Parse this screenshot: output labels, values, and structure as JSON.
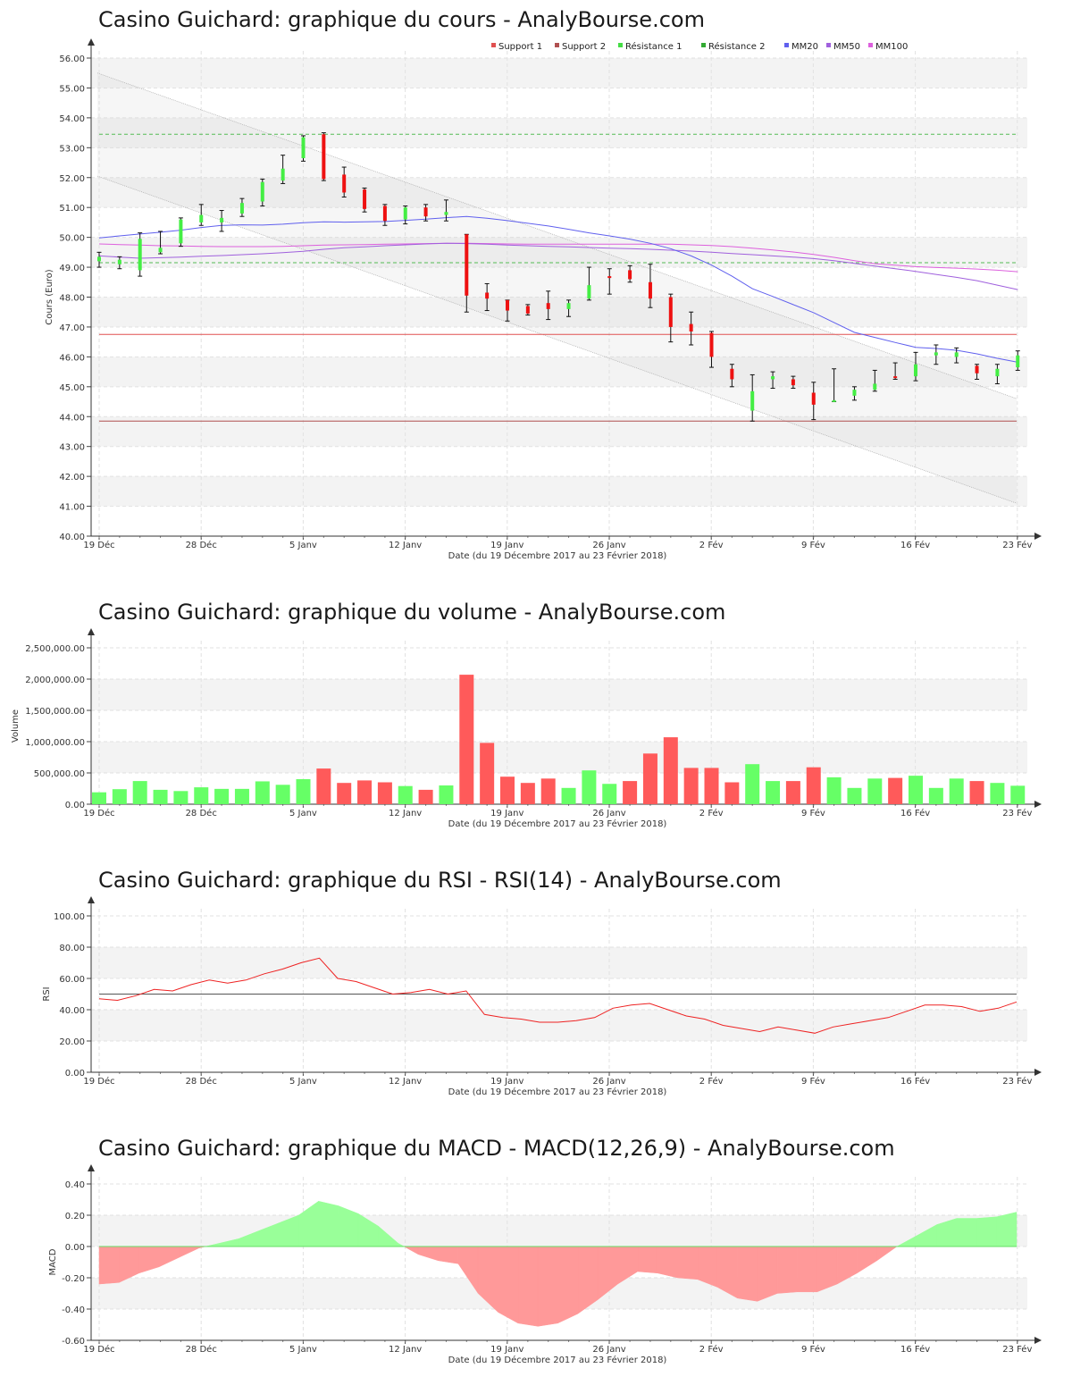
{
  "chart_data": [
    {
      "type": "candlestick",
      "title": "Casino Guichard: graphique du cours - AnalyBourse.com",
      "ylabel": "Cours (Euro)",
      "xlabel": "Date (du 19 Décembre 2017 au 23 Février 2018)",
      "ylim": [
        40,
        56
      ],
      "y_ticks": [
        "40.00",
        "41.00",
        "42.00",
        "43.00",
        "44.00",
        "45.00",
        "46.00",
        "47.00",
        "48.00",
        "49.00",
        "50.00",
        "51.00",
        "52.00",
        "53.00",
        "54.00",
        "55.00",
        "56.00"
      ],
      "x_ticks": [
        "19 Déc",
        "28 Déc",
        "5 Janv",
        "12 Janv",
        "19 Janv",
        "26 Janv",
        "2 Fév",
        "9 Fév",
        "16 Fév",
        "23 Fév"
      ],
      "legend": [
        {
          "name": "Support 1",
          "color": "#e05050"
        },
        {
          "name": "Support 2",
          "color": "#b05050"
        },
        {
          "name": "Résistance 1",
          "color": "#44dd44"
        },
        {
          "name": "Résistance 2",
          "color": "#33aa33"
        },
        {
          "name": "MM20",
          "color": "#6060ee"
        },
        {
          "name": "MM50",
          "color": "#a060dd"
        },
        {
          "name": "MM100",
          "color": "#dd60dd"
        }
      ],
      "legend_position": "top-right",
      "levels": {
        "support1": 46.75,
        "support2": 43.85,
        "resistance1": 49.15,
        "resistance2": 53.45
      },
      "candles": [
        {
          "o": 49.2,
          "c": 49.35,
          "h": 49.5,
          "l": 49.0
        },
        {
          "o": 49.1,
          "c": 49.25,
          "h": 49.35,
          "l": 48.95
        },
        {
          "o": 48.9,
          "c": 49.95,
          "h": 50.15,
          "l": 48.7
        },
        {
          "o": 49.5,
          "c": 49.65,
          "h": 50.2,
          "l": 49.45
        },
        {
          "o": 49.8,
          "c": 50.6,
          "h": 50.65,
          "l": 49.7
        },
        {
          "o": 50.5,
          "c": 50.75,
          "h": 51.1,
          "l": 50.4
        },
        {
          "o": 50.5,
          "c": 50.65,
          "h": 50.9,
          "l": 50.2
        },
        {
          "o": 50.8,
          "c": 51.15,
          "h": 51.3,
          "l": 50.7
        },
        {
          "o": 51.2,
          "c": 51.85,
          "h": 51.95,
          "l": 51.05
        },
        {
          "o": 51.9,
          "c": 52.3,
          "h": 52.75,
          "l": 51.8
        },
        {
          "o": 52.65,
          "c": 53.35,
          "h": 53.4,
          "l": 52.55
        },
        {
          "o": 53.45,
          "c": 51.95,
          "h": 53.5,
          "l": 51.9
        },
        {
          "o": 52.1,
          "c": 51.5,
          "h": 52.35,
          "l": 51.35
        },
        {
          "o": 51.6,
          "c": 50.95,
          "h": 51.65,
          "l": 50.85
        },
        {
          "o": 51.05,
          "c": 50.55,
          "h": 51.1,
          "l": 50.4
        },
        {
          "o": 50.6,
          "c": 51.0,
          "h": 51.05,
          "l": 50.45
        },
        {
          "o": 51.0,
          "c": 50.7,
          "h": 51.1,
          "l": 50.55
        },
        {
          "o": 50.75,
          "c": 50.85,
          "h": 51.25,
          "l": 50.55
        },
        {
          "o": 50.1,
          "c": 48.05,
          "h": 50.1,
          "l": 47.5
        },
        {
          "o": 48.15,
          "c": 47.95,
          "h": 48.45,
          "l": 47.55
        },
        {
          "o": 47.9,
          "c": 47.55,
          "h": 47.9,
          "l": 47.2
        },
        {
          "o": 47.7,
          "c": 47.45,
          "h": 47.75,
          "l": 47.4
        },
        {
          "o": 47.8,
          "c": 47.6,
          "h": 48.2,
          "l": 47.25
        },
        {
          "o": 47.6,
          "c": 47.8,
          "h": 47.9,
          "l": 47.35
        },
        {
          "o": 47.95,
          "c": 48.4,
          "h": 49.0,
          "l": 47.9
        },
        {
          "o": 48.7,
          "c": 48.65,
          "h": 48.95,
          "l": 48.1
        },
        {
          "o": 48.9,
          "c": 48.6,
          "h": 49.05,
          "l": 48.5
        },
        {
          "o": 48.5,
          "c": 47.95,
          "h": 49.1,
          "l": 47.65
        },
        {
          "o": 48.0,
          "c": 47.0,
          "h": 48.1,
          "l": 46.5
        },
        {
          "o": 47.1,
          "c": 46.85,
          "h": 47.5,
          "l": 46.4
        },
        {
          "o": 46.8,
          "c": 46.0,
          "h": 46.85,
          "l": 45.65
        },
        {
          "o": 45.6,
          "c": 45.25,
          "h": 45.75,
          "l": 45.0
        },
        {
          "o": 44.2,
          "c": 44.85,
          "h": 45.4,
          "l": 43.85
        },
        {
          "o": 45.25,
          "c": 45.35,
          "h": 45.5,
          "l": 44.95
        },
        {
          "o": 45.25,
          "c": 45.05,
          "h": 45.35,
          "l": 44.95
        },
        {
          "o": 44.8,
          "c": 44.4,
          "h": 45.15,
          "l": 43.9
        },
        {
          "o": 44.5,
          "c": 44.55,
          "h": 45.6,
          "l": 44.5
        },
        {
          "o": 44.7,
          "c": 44.9,
          "h": 45.0,
          "l": 44.55
        },
        {
          "o": 44.9,
          "c": 45.1,
          "h": 45.55,
          "l": 44.85
        },
        {
          "o": 45.35,
          "c": 45.3,
          "h": 45.8,
          "l": 45.25
        },
        {
          "o": 45.35,
          "c": 45.75,
          "h": 46.15,
          "l": 45.2
        },
        {
          "o": 46.05,
          "c": 46.15,
          "h": 46.4,
          "l": 45.75
        },
        {
          "o": 46.0,
          "c": 46.15,
          "h": 46.3,
          "l": 45.8
        },
        {
          "o": 45.7,
          "c": 45.45,
          "h": 45.75,
          "l": 45.25
        },
        {
          "o": 45.35,
          "c": 45.6,
          "h": 45.75,
          "l": 45.1
        },
        {
          "o": 45.65,
          "c": 46.05,
          "h": 46.2,
          "l": 45.55
        }
      ],
      "mm20": [
        49.98,
        50.05,
        50.11,
        50.17,
        50.24,
        50.33,
        50.4,
        50.42,
        50.41,
        50.44,
        50.49,
        50.52,
        50.51,
        50.52,
        50.53,
        50.57,
        50.61,
        50.66,
        50.7,
        50.64,
        50.56,
        50.47,
        50.38,
        50.27,
        50.15,
        50.05,
        49.94,
        49.8,
        49.62,
        49.38,
        49.07,
        48.7,
        48.28,
        48.02,
        47.75,
        47.48,
        47.15,
        46.82,
        46.65,
        46.48,
        46.32,
        46.28,
        46.22,
        46.1,
        45.95,
        45.82
      ],
      "mm50": [
        49.38,
        49.34,
        49.3,
        49.32,
        49.34,
        49.37,
        49.39,
        49.42,
        49.45,
        49.49,
        49.53,
        49.6,
        49.65,
        49.68,
        49.72,
        49.75,
        49.78,
        49.8,
        49.79,
        49.77,
        49.74,
        49.72,
        49.7,
        49.68,
        49.66,
        49.64,
        49.62,
        49.6,
        49.57,
        49.54,
        49.5,
        49.46,
        49.42,
        49.38,
        49.34,
        49.29,
        49.22,
        49.13,
        49.04,
        48.95,
        48.86,
        48.76,
        48.66,
        48.55,
        48.4,
        48.25
      ],
      "mm100": [
        49.78,
        49.76,
        49.74,
        49.72,
        49.71,
        49.7,
        49.69,
        49.69,
        49.69,
        49.7,
        49.72,
        49.74,
        49.75,
        49.76,
        49.77,
        49.78,
        49.79,
        49.8,
        49.8,
        49.79,
        49.78,
        49.77,
        49.77,
        49.77,
        49.77,
        49.77,
        49.77,
        49.77,
        49.77,
        49.75,
        49.73,
        49.69,
        49.64,
        49.58,
        49.51,
        49.43,
        49.33,
        49.22,
        49.12,
        49.07,
        49.02,
        48.99,
        48.97,
        48.94,
        48.9,
        48.85
      ],
      "channel": {
        "upper": [
          55.5,
          44.6
        ],
        "lower": [
          52.05,
          41.1
        ]
      }
    },
    {
      "type": "bar",
      "title": "Casino Guichard: graphique du volume - AnalyBourse.com",
      "ylabel": "Volume",
      "xlabel": "Date (du 19 Décembre 2017 au 23 Février 2018)",
      "ylim": [
        0,
        2500000
      ],
      "y_ticks": [
        "0.00",
        "500,000.00",
        "1,000,000.00",
        "1,500,000.00",
        "2,000,000.00",
        "2,500,000.00"
      ],
      "x_ticks": [
        "19 Déc",
        "28 Déc",
        "5 Janv",
        "12 Janv",
        "19 Janv",
        "26 Janv",
        "2 Fév",
        "9 Fév",
        "16 Fév",
        "23 Fév"
      ],
      "values": [
        190000,
        240000,
        370000,
        230000,
        210000,
        270000,
        245000,
        245000,
        365000,
        310000,
        400000,
        570000,
        340000,
        380000,
        350000,
        290000,
        230000,
        300000,
        2070000,
        980000,
        440000,
        340000,
        410000,
        260000,
        540000,
        325000,
        370000,
        810000,
        1070000,
        580000,
        580000,
        350000,
        640000,
        370000,
        370000,
        590000,
        430000,
        260000,
        410000,
        420000,
        455000,
        260000,
        410000,
        370000,
        340000,
        295000
      ],
      "up": [
        true,
        true,
        true,
        true,
        true,
        true,
        true,
        true,
        true,
        true,
        true,
        false,
        false,
        false,
        false,
        true,
        false,
        true,
        false,
        false,
        false,
        false,
        false,
        true,
        true,
        true,
        false,
        false,
        false,
        false,
        false,
        false,
        true,
        true,
        false,
        false,
        true,
        true,
        true,
        false,
        true,
        true,
        true,
        false,
        true,
        true
      ]
    },
    {
      "type": "line",
      "title": "Casino Guichard: graphique du RSI - RSI(14) - AnalyBourse.com",
      "ylabel": "RSI",
      "xlabel": "Date (du 19 Décembre 2017 au 23 Février 2018)",
      "ylim": [
        0,
        100
      ],
      "y_ticks": [
        "0.00",
        "20.00",
        "40.00",
        "60.00",
        "80.00",
        "100.00"
      ],
      "x_ticks": [
        "19 Déc",
        "28 Déc",
        "5 Janv",
        "12 Janv",
        "19 Janv",
        "26 Janv",
        "2 Fév",
        "9 Fév",
        "16 Fév",
        "23 Fév"
      ],
      "reference": 50,
      "values": [
        47,
        46,
        49,
        53,
        52,
        56,
        59,
        57,
        59,
        63,
        66,
        70,
        73,
        60,
        58,
        54,
        50,
        51,
        53,
        50,
        52,
        37,
        35,
        34,
        32,
        32,
        33,
        35,
        41,
        43,
        44,
        40,
        36,
        34,
        30,
        28,
        26,
        29,
        27,
        25,
        29,
        31,
        33,
        35,
        39,
        43,
        43,
        42,
        39,
        41,
        45
      ]
    },
    {
      "type": "area",
      "title": "Casino Guichard: graphique du MACD - MACD(12,26,9) - AnalyBourse.com",
      "ylabel": "MACD",
      "xlabel": "Date (du 19 Décembre 2017 au 23 Février 2018)",
      "ylim": [
        -0.6,
        0.4
      ],
      "y_ticks": [
        "-0.60",
        "-0.40",
        "-0.20",
        "0.00",
        "0.20",
        "0.40"
      ],
      "x_ticks": [
        "19 Déc",
        "28 Déc",
        "5 Janv",
        "12 Janv",
        "19 Janv",
        "26 Janv",
        "2 Fév",
        "9 Fév",
        "16 Fév",
        "23 Fév"
      ],
      "values": [
        -0.24,
        -0.23,
        -0.17,
        -0.13,
        -0.07,
        -0.01,
        0.02,
        0.05,
        0.1,
        0.15,
        0.2,
        0.29,
        0.26,
        0.21,
        0.13,
        0.02,
        -0.05,
        -0.09,
        -0.11,
        -0.3,
        -0.42,
        -0.49,
        -0.51,
        -0.49,
        -0.43,
        -0.34,
        -0.24,
        -0.16,
        -0.17,
        -0.2,
        -0.21,
        -0.26,
        -0.33,
        -0.35,
        -0.3,
        -0.29,
        -0.29,
        -0.24,
        -0.17,
        -0.09,
        0.0,
        0.07,
        0.14,
        0.18,
        0.18,
        0.19,
        0.22
      ]
    }
  ]
}
